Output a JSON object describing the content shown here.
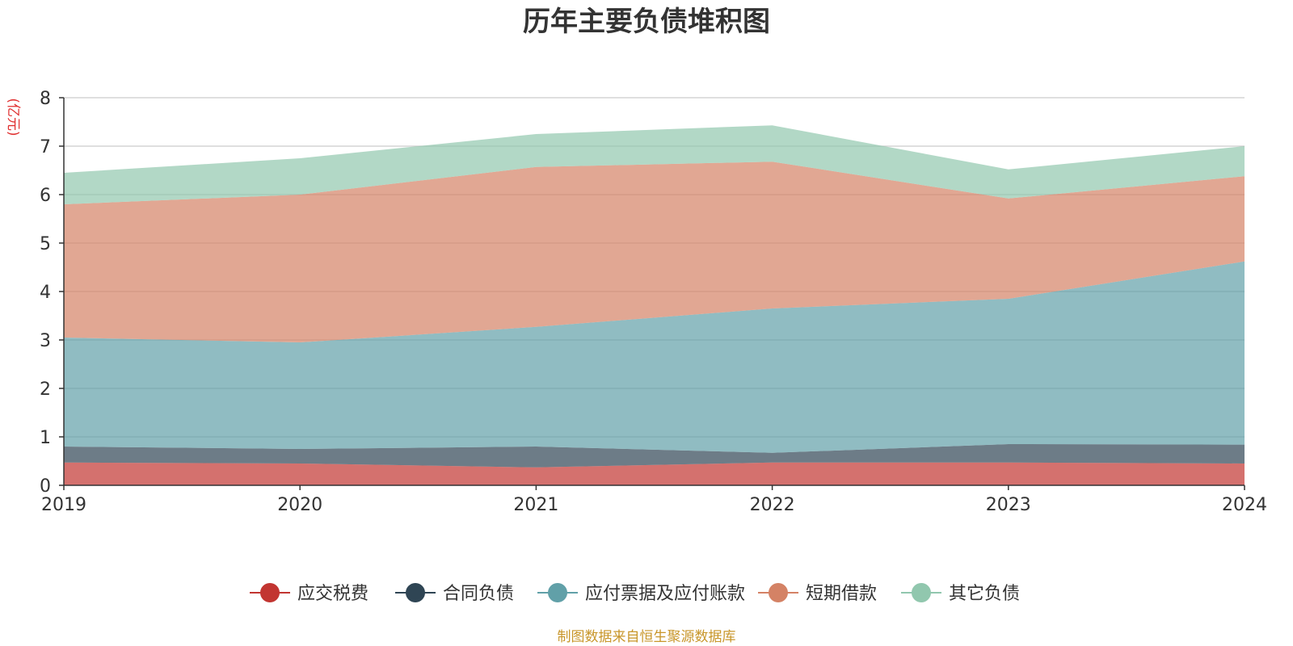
{
  "chart_data": {
    "type": "area",
    "stacked": true,
    "title": "历年主要负债堆积图",
    "yunit": "(亿元)",
    "x": [
      "2019",
      "2020",
      "2021",
      "2022",
      "2023",
      "2024"
    ],
    "ylim": [
      0,
      8
    ],
    "yticks": [
      "0",
      "1",
      "2",
      "3",
      "4",
      "5",
      "6",
      "7",
      "8"
    ],
    "grid": true,
    "legend_position": "bottom",
    "series": [
      {
        "name": "应交税费",
        "color": "#c23531",
        "values": [
          0.47,
          0.45,
          0.37,
          0.47,
          0.47,
          0.45
        ]
      },
      {
        "name": "合同负债",
        "color": "#2f4554",
        "values": [
          0.33,
          0.3,
          0.43,
          0.2,
          0.38,
          0.39
        ]
      },
      {
        "name": "应付票据及应付账款",
        "color": "#61a0a8",
        "values": [
          2.25,
          2.2,
          2.47,
          2.98,
          3.0,
          3.78
        ]
      },
      {
        "name": "短期借款",
        "color": "#d48265",
        "values": [
          2.75,
          3.05,
          3.3,
          3.03,
          2.07,
          1.76
        ]
      },
      {
        "name": "其它负债",
        "color": "#91c7ae",
        "values": [
          0.65,
          0.75,
          0.68,
          0.75,
          0.6,
          0.62
        ]
      }
    ]
  },
  "footer": {
    "source": "制图数据来自恒生聚源数据库"
  }
}
